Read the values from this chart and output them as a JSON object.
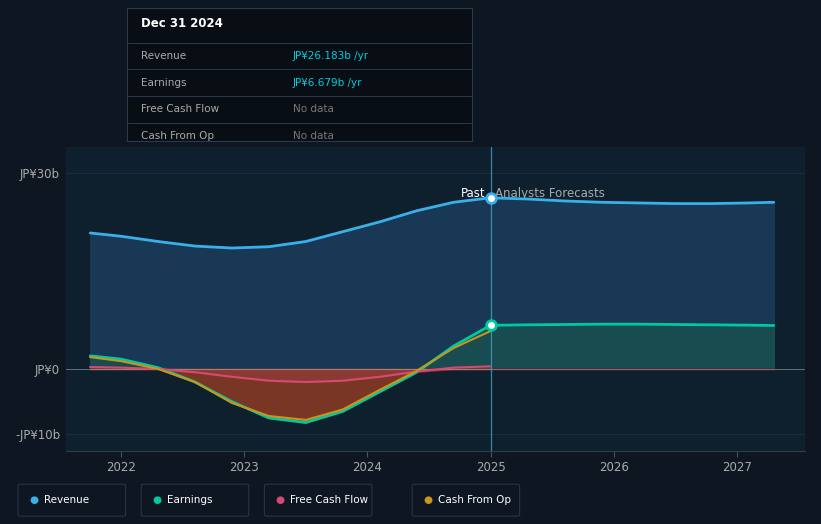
{
  "bg_color": "#0e1621",
  "plot_bg_color": "#0e1f2e",
  "grid_color": "#1a3040",
  "tick_color": "#aaaaaa",
  "x_past": [
    2021.75,
    2022.0,
    2022.3,
    2022.6,
    2022.9,
    2023.2,
    2023.5,
    2023.8,
    2024.1,
    2024.4,
    2024.7,
    2025.0
  ],
  "x_future": [
    2025.0,
    2025.3,
    2025.6,
    2025.9,
    2026.2,
    2026.5,
    2026.8,
    2027.1,
    2027.3
  ],
  "revenue_past": [
    20.8,
    20.3,
    19.5,
    18.8,
    18.5,
    18.7,
    19.5,
    21.0,
    22.5,
    24.2,
    25.5,
    26.183
  ],
  "revenue_future": [
    26.183,
    26.0,
    25.7,
    25.5,
    25.4,
    25.3,
    25.3,
    25.4,
    25.5
  ],
  "earnings_past": [
    2.0,
    1.5,
    0.2,
    -2.0,
    -5.0,
    -7.5,
    -8.2,
    -6.5,
    -3.5,
    -0.5,
    3.5,
    6.679
  ],
  "earnings_future": [
    6.679,
    6.75,
    6.8,
    6.85,
    6.85,
    6.8,
    6.75,
    6.7,
    6.65
  ],
  "fcf_past": [
    0.3,
    0.2,
    0.0,
    -0.5,
    -1.2,
    -1.8,
    -2.0,
    -1.8,
    -1.2,
    -0.4,
    0.2,
    0.4
  ],
  "cashop_past": [
    1.8,
    1.2,
    0.0,
    -2.0,
    -5.2,
    -7.2,
    -7.8,
    -6.2,
    -3.2,
    -0.3,
    3.2,
    5.8
  ],
  "past_x": 2025.0,
  "xlim_left": 2021.55,
  "xlim_right": 2027.55,
  "ylim": [
    -12.5,
    34
  ],
  "yticks": [
    -10,
    0,
    30
  ],
  "ytick_labels": [
    "-JP¥10b",
    "JP¥0",
    "JP¥30b"
  ],
  "xticks": [
    2022,
    2023,
    2024,
    2025,
    2026,
    2027
  ],
  "tooltip_title": "Dec 31 2024",
  "tooltip_rows": [
    {
      "label": "Revenue",
      "value": "JP¥26.183b /yr",
      "value_color": "#00ccdd"
    },
    {
      "label": "Earnings",
      "value": "JP¥6.679b /yr",
      "value_color": "#00ccdd"
    },
    {
      "label": "Free Cash Flow",
      "value": "No data",
      "value_color": "#777777"
    },
    {
      "label": "Cash From Op",
      "value": "No data",
      "value_color": "#777777"
    }
  ],
  "revenue_line_color": "#3ab0e8",
  "earnings_line_color": "#00c9a0",
  "fcf_line_color": "#d44a70",
  "cashop_line_color": "#c8961a",
  "revenue_fill_color": "#1a3d5c",
  "earnings_fill_pos_color": "#1a5050",
  "earnings_fill_neg_color": "#6b1528",
  "legend_items": [
    {
      "label": "Revenue",
      "color": "#3ab0e8"
    },
    {
      "label": "Earnings",
      "color": "#00c9a0"
    },
    {
      "label": "Free Cash Flow",
      "color": "#d44a70"
    },
    {
      "label": "Cash From Op",
      "color": "#c8961a"
    }
  ]
}
